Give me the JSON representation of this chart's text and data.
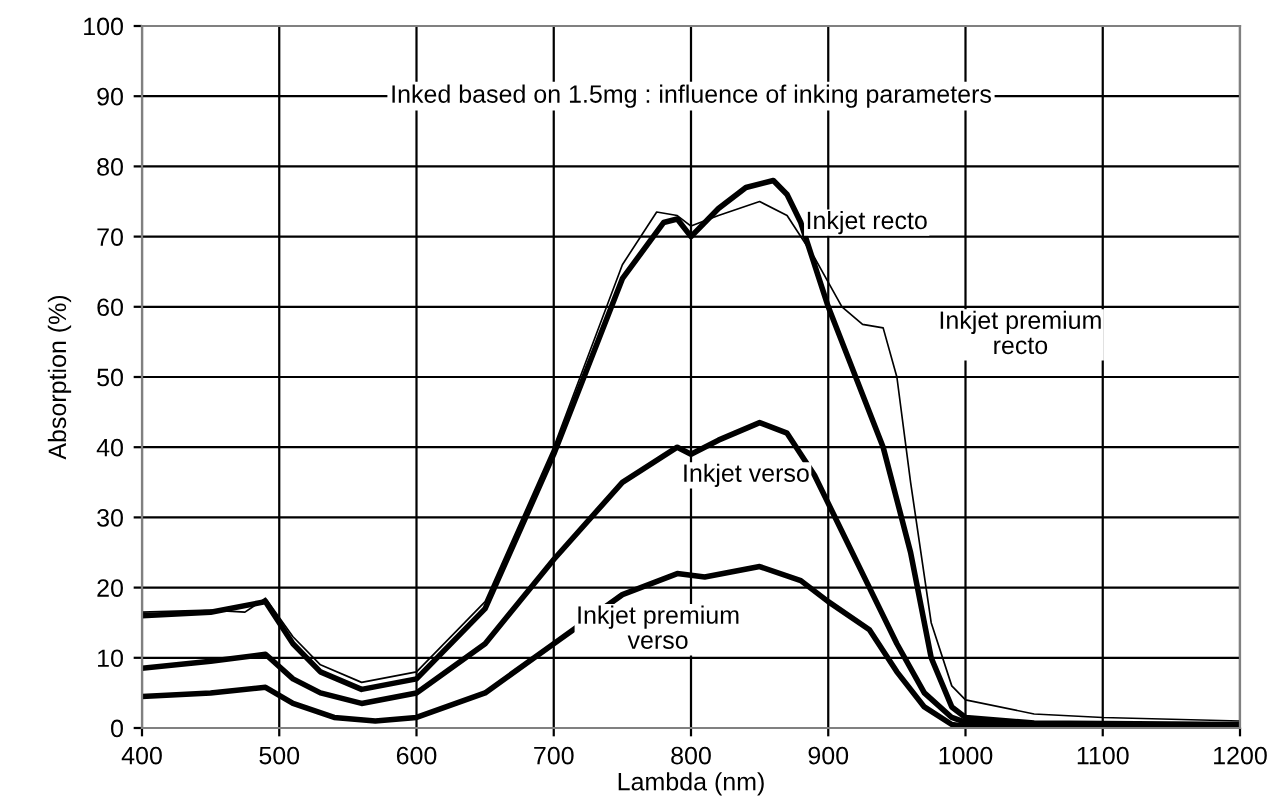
{
  "chart_data": {
    "type": "line",
    "title": "Inked based on 1.5mg : influence of inking parameters",
    "xlabel": "Lambda (nm)",
    "ylabel": "Absorption (%)",
    "xlim": [
      400,
      1200
    ],
    "ylim": [
      0,
      100
    ],
    "xticks": [
      400,
      500,
      600,
      700,
      800,
      900,
      1000,
      1100,
      1200
    ],
    "yticks": [
      0,
      10,
      20,
      30,
      40,
      50,
      60,
      70,
      80,
      90,
      100
    ],
    "grid": true,
    "marker": "none",
    "line_style": "solid",
    "series": [
      {
        "name": "Inkjet premium\nrecto",
        "color": "#000000",
        "x": [
          400,
          450,
          475,
          490,
          510,
          530,
          560,
          600,
          650,
          700,
          750,
          775,
          790,
          800,
          820,
          850,
          870,
          890,
          910,
          925,
          940,
          950,
          960,
          975,
          990,
          1000,
          1050,
          1100,
          1200
        ],
        "values": [
          16.5,
          16.8,
          16.5,
          18.5,
          13,
          9,
          6.5,
          8,
          18,
          40,
          66,
          73.5,
          73,
          71.5,
          73,
          75,
          73,
          67,
          60,
          57.5,
          57,
          50,
          35,
          15,
          6,
          4,
          2,
          1.5,
          1
        ]
      },
      {
        "name": "Inkjet recto",
        "color": "#000000",
        "x": [
          400,
          450,
          490,
          510,
          530,
          560,
          600,
          650,
          700,
          750,
          780,
          790,
          800,
          820,
          840,
          860,
          870,
          880,
          900,
          920,
          940,
          960,
          975,
          990,
          1000,
          1050,
          1200
        ],
        "values": [
          16,
          16.5,
          18,
          12,
          8,
          5.5,
          7,
          17,
          39,
          64,
          72,
          72.5,
          70,
          74,
          77,
          78,
          76,
          72,
          60,
          50,
          40,
          25,
          10,
          3,
          1.5,
          0.7,
          0.5
        ]
      },
      {
        "name": "Inkjet verso",
        "color": "#000000",
        "x": [
          400,
          450,
          490,
          510,
          530,
          560,
          600,
          650,
          700,
          750,
          790,
          800,
          820,
          850,
          870,
          890,
          910,
          930,
          950,
          970,
          990,
          1000,
          1100,
          1200
        ],
        "values": [
          8.5,
          9.5,
          10.5,
          7,
          5,
          3.5,
          5,
          12,
          24,
          35,
          40,
          39,
          41,
          43.5,
          42,
          36,
          28,
          20,
          12,
          5,
          1.5,
          0.8,
          0.3,
          0.2
        ]
      },
      {
        "name": "Inkjet premium\nverso",
        "color": "#000000",
        "x": [
          400,
          450,
          490,
          510,
          540,
          570,
          600,
          650,
          700,
          750,
          790,
          810,
          850,
          880,
          900,
          930,
          950,
          970,
          990,
          1000,
          1200
        ],
        "values": [
          4.5,
          5,
          5.8,
          3.5,
          1.5,
          1,
          1.5,
          5,
          12,
          19,
          22,
          21.5,
          23,
          21,
          18,
          14,
          8,
          3,
          0.5,
          0.2,
          0
        ]
      }
    ]
  }
}
